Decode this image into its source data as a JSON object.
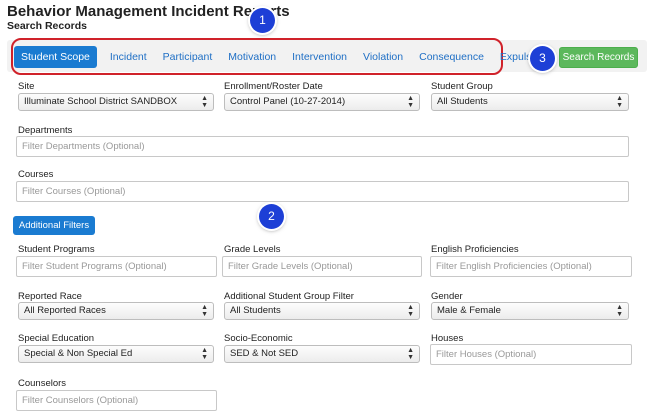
{
  "header": {
    "title": "Behavior Management Incident Reports",
    "subtitle": "Search Records"
  },
  "tabs": [
    {
      "label": "Student Scope",
      "active": true
    },
    {
      "label": "Incident"
    },
    {
      "label": "Participant"
    },
    {
      "label": "Motivation"
    },
    {
      "label": "Intervention"
    },
    {
      "label": "Violation"
    },
    {
      "label": "Consequence"
    },
    {
      "label": "Expulsion"
    }
  ],
  "search_button": "Search Records",
  "badges": [
    "1",
    "2",
    "3"
  ],
  "scope": {
    "site": {
      "label": "Site",
      "value": "Illuminate School District SANDBOX"
    },
    "enrollment": {
      "label": "Enrollment/Roster Date",
      "value": "Control Panel (10-27-2014)"
    },
    "student_group": {
      "label": "Student Group",
      "value": "All Students"
    },
    "departments": {
      "label": "Departments",
      "placeholder": "Filter Departments (Optional)"
    },
    "courses": {
      "label": "Courses",
      "placeholder": "Filter Courses (Optional)"
    }
  },
  "additional_filters_button": "Additional Filters",
  "filters": {
    "student_programs": {
      "label": "Student Programs",
      "placeholder": "Filter Student Programs (Optional)"
    },
    "grade_levels": {
      "label": "Grade Levels",
      "placeholder": "Filter Grade Levels (Optional)"
    },
    "english_proficiencies": {
      "label": "English Proficiencies",
      "placeholder": "Filter English Proficiencies (Optional)"
    },
    "reported_race": {
      "label": "Reported Race",
      "value": "All Reported Races"
    },
    "additional_group": {
      "label": "Additional Student Group Filter",
      "value": "All Students"
    },
    "gender": {
      "label": "Gender",
      "value": "Male & Female"
    },
    "special_education": {
      "label": "Special Education",
      "value": "Special & Non Special Ed"
    },
    "socio_economic": {
      "label": "Socio-Economic",
      "value": "SED & Not SED"
    },
    "houses": {
      "label": "Houses",
      "placeholder": "Filter Houses (Optional)"
    },
    "counselors": {
      "label": "Counselors",
      "placeholder": "Filter Counselors (Optional)"
    }
  },
  "colors": {
    "primary": "#1a7bd1",
    "success": "#5cb85c",
    "highlight": "#d0222a",
    "badge": "#1d3fd6"
  }
}
